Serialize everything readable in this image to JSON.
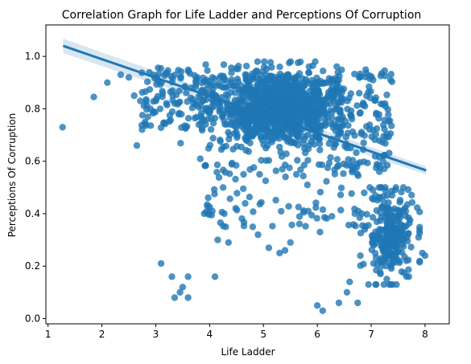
{
  "chart_data": {
    "type": "scatter",
    "title": "Correlation Graph for Life Ladder and Perceptions Of Corruption",
    "xlabel": "Life Ladder",
    "ylabel": "Perceptions Of Corruption",
    "xlim": [
      0.96,
      8.45
    ],
    "ylim": [
      -0.02,
      1.12
    ],
    "xticks": [
      1,
      2,
      3,
      4,
      5,
      6,
      7,
      8
    ],
    "yticks": [
      0.0,
      0.2,
      0.4,
      0.6,
      0.8,
      1.0
    ],
    "grid": false,
    "regression_line": {
      "x": [
        1.28,
        8.02
      ],
      "y": [
        1.04,
        0.565
      ]
    },
    "colors": {
      "points": "#1f77b4",
      "line": "#1f77b4",
      "band": "#1f77b4"
    },
    "cluster_seed_points": [
      [
        1.27,
        0.73
      ],
      [
        1.85,
        0.845
      ],
      [
        2.1,
        0.9
      ],
      [
        2.35,
        0.93
      ],
      [
        2.5,
        0.92
      ],
      [
        2.6,
        0.85
      ],
      [
        2.65,
        0.66
      ],
      [
        2.8,
        0.75
      ],
      [
        2.9,
        0.8
      ],
      [
        3.0,
        0.83
      ],
      [
        3.1,
        0.21
      ],
      [
        3.3,
        0.16
      ],
      [
        3.35,
        0.08
      ],
      [
        3.45,
        0.1
      ],
      [
        3.5,
        0.12
      ],
      [
        3.6,
        0.16
      ],
      [
        3.6,
        0.08
      ],
      [
        4.1,
        0.16
      ],
      [
        3.9,
        0.4
      ],
      [
        4.05,
        0.41
      ],
      [
        4.15,
        0.3
      ],
      [
        4.3,
        0.35
      ],
      [
        4.35,
        0.29
      ],
      [
        4.25,
        0.5
      ],
      [
        4.8,
        0.35
      ],
      [
        4.9,
        0.32
      ],
      [
        5.1,
        0.27
      ],
      [
        5.3,
        0.25
      ],
      [
        5.4,
        0.26
      ],
      [
        5.5,
        0.29
      ],
      [
        6.0,
        0.05
      ],
      [
        6.1,
        0.03
      ],
      [
        6.05,
        0.33
      ],
      [
        6.4,
        0.06
      ],
      [
        6.55,
        0.1
      ],
      [
        6.6,
        0.14
      ],
      [
        6.75,
        0.06
      ],
      [
        6.8,
        0.24
      ],
      [
        6.95,
        0.13
      ],
      [
        7.7,
        0.16
      ],
      [
        7.95,
        0.25
      ],
      [
        8.0,
        0.24
      ]
    ]
  }
}
